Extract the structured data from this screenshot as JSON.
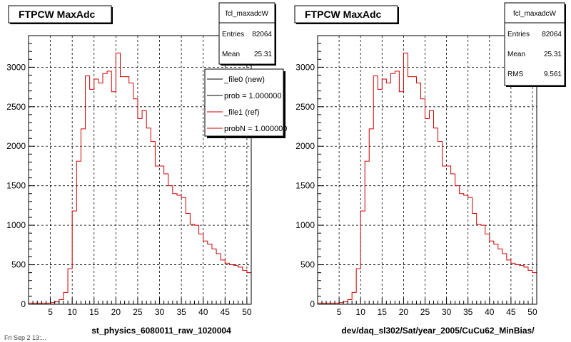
{
  "footer_text": "Fri Sep 2 13:...",
  "chart_data": [
    {
      "type": "bar",
      "title": "FTPCW MaxAdc",
      "xlabel": "st_physics_6080011_raw_1020004",
      "ylabel": "",
      "xlim": [
        0,
        51
      ],
      "ylim": [
        0,
        3400
      ],
      "xticks": [
        5,
        10,
        15,
        20,
        25,
        30,
        35,
        40,
        45,
        50
      ],
      "yticks": [
        0,
        500,
        1000,
        1500,
        2000,
        2500,
        3000
      ],
      "grid": true,
      "stats": {
        "name": "fcl_maxadcW",
        "rows": [
          {
            "label": "Entries",
            "value": "82064"
          },
          {
            "label": "Mean",
            "value": "25.31"
          }
        ]
      },
      "legend": {
        "placement": "top-right",
        "entries": [
          {
            "label": "_file0 (new)",
            "color": "#000000"
          },
          {
            "label": "prob = 1.000000",
            "color": "#000000"
          },
          {
            "label": "_file1 (ref)",
            "color": "#cc0000"
          },
          {
            "label": "probN = 1.000000",
            "color": "#cc0000"
          }
        ]
      },
      "series": [
        {
          "name": "_file1 (ref)",
          "color": "#cc0000",
          "bin_edges_start": 0,
          "bin_width": 1,
          "values": [
            15,
            15,
            15,
            15,
            15,
            20,
            30,
            60,
            150,
            450,
            1180,
            1810,
            2220,
            2890,
            2720,
            2850,
            2800,
            2920,
            2950,
            2690,
            3180,
            2880,
            2880,
            2800,
            2600,
            2350,
            2450,
            2230,
            2060,
            1750,
            1750,
            1650,
            1500,
            1400,
            1380,
            1350,
            1150,
            1010,
            1000,
            890,
            800,
            760,
            700,
            640,
            560,
            520,
            500,
            490,
            470,
            430,
            400
          ]
        }
      ]
    },
    {
      "type": "bar",
      "title": "FTPCW MaxAdc",
      "xlabel": "dev/daq_sl302/Sat/year_2005/CuCu62_MinBias/",
      "ylabel": "",
      "xlim": [
        0,
        51
      ],
      "ylim": [
        0,
        3400
      ],
      "xticks": [
        5,
        10,
        15,
        20,
        25,
        30,
        35,
        40,
        45,
        50
      ],
      "yticks": [
        0,
        500,
        1000,
        1500,
        2000,
        2500,
        3000
      ],
      "grid": true,
      "stats": {
        "name": "fcl_maxadcW",
        "rows": [
          {
            "label": "Entries",
            "value": "82064"
          },
          {
            "label": "Mean",
            "value": "25.31"
          },
          {
            "label": "RMS",
            "value": "9.561"
          }
        ]
      },
      "series": [
        {
          "name": "",
          "color": "#cc0000",
          "bin_edges_start": 0,
          "bin_width": 1,
          "values": [
            15,
            15,
            15,
            15,
            15,
            20,
            30,
            60,
            150,
            450,
            1180,
            1810,
            2220,
            2890,
            2720,
            2850,
            2800,
            2920,
            2950,
            2690,
            3180,
            2880,
            2880,
            2800,
            2600,
            2350,
            2450,
            2230,
            2060,
            1750,
            1750,
            1650,
            1500,
            1400,
            1380,
            1350,
            1150,
            1010,
            1000,
            890,
            800,
            760,
            700,
            640,
            560,
            520,
            500,
            490,
            470,
            430,
            400
          ]
        }
      ]
    }
  ]
}
